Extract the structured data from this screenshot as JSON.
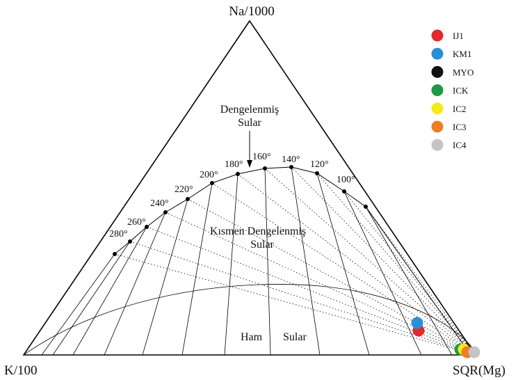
{
  "corners": {
    "top": "Na/1000",
    "left": "K/100",
    "right": "SQR(Mg)"
  },
  "regions": {
    "full_equilibrium_line1": "Dengelenmiş",
    "full_equilibrium_line2": "Sular",
    "partial_equilibrium_line1": "Kısmen Dengelenmiş",
    "partial_equilibrium_line2": "Sular",
    "immature_word1": "Ham",
    "immature_word2": "Sular"
  },
  "temperatures": [
    "100°",
    "120°",
    "140°",
    "160°",
    "180°",
    "200°",
    "220°",
    "240°",
    "260°",
    "280°"
  ],
  "legend": [
    {
      "label": "IJ1",
      "color": "#e0282e"
    },
    {
      "label": "KM1",
      "color": "#2a8fd6"
    },
    {
      "label": "MYO",
      "color": "#111111"
    },
    {
      "label": "ICK",
      "color": "#1e9a46"
    },
    {
      "label": "IC2",
      "color": "#f4ea1a"
    },
    {
      "label": "IC3",
      "color": "#ef7d22"
    },
    {
      "label": "IC4",
      "color": "#c4c4c4"
    }
  ]
}
